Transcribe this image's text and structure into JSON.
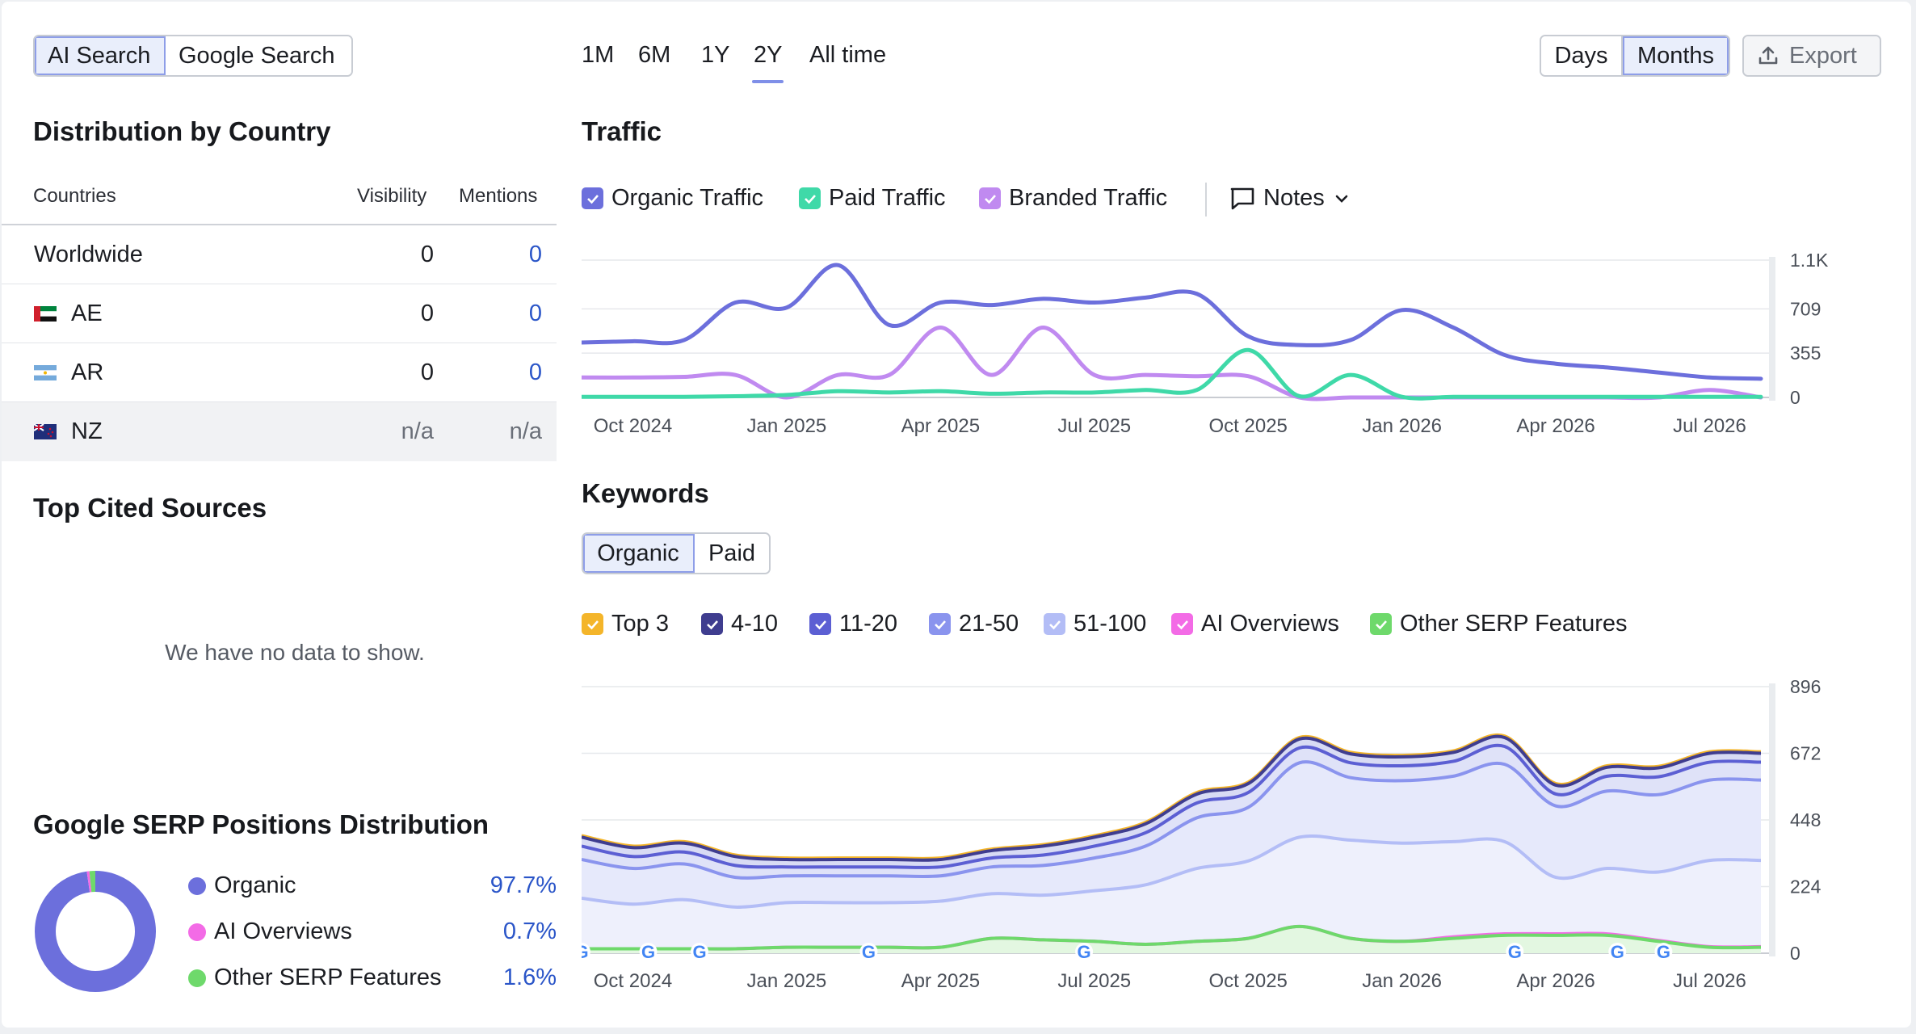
{
  "left": {
    "search_tabs": [
      {
        "label": "AI Search",
        "active": true
      },
      {
        "label": "Google Search",
        "active": false
      }
    ],
    "distribution": {
      "title": "Distribution by Country",
      "columns": {
        "countries": "Countries",
        "visibility": "Visibility",
        "mentions": "Mentions"
      },
      "rows": [
        {
          "country": "Worldwide",
          "flag": "",
          "visibility": "0",
          "mentions": "0"
        },
        {
          "country": "AE",
          "flag": "ae-flag",
          "visibility": "0",
          "mentions": "0"
        },
        {
          "country": "AR",
          "flag": "ar-flag",
          "visibility": "0",
          "mentions": "0"
        },
        {
          "country": "NZ",
          "flag": "nz-flag",
          "visibility": "n/a",
          "mentions": "n/a"
        }
      ]
    },
    "top_cited": {
      "title": "Top Cited Sources",
      "empty_text": "We have no data to show."
    },
    "serp": {
      "title": "Google SERP Positions Distribution",
      "items": [
        {
          "label": "Organic",
          "value": "97.7%",
          "color": "#6c6fdc",
          "share": 97.7
        },
        {
          "label": "AI Overviews",
          "value": "0.7%",
          "color": "#f36be6",
          "share": 0.7
        },
        {
          "label": "Other SERP Features",
          "value": "1.6%",
          "color": "#6ed96b",
          "share": 1.6
        }
      ]
    }
  },
  "header": {
    "ranges": [
      "1M",
      "6M",
      "1Y",
      "2Y",
      "All time"
    ],
    "selected_range": "2Y",
    "granularity": [
      {
        "label": "Days",
        "active": false
      },
      {
        "label": "Months",
        "active": true
      }
    ],
    "export_label": "Export"
  },
  "traffic": {
    "title": "Traffic",
    "legend": [
      {
        "label": "Organic Traffic",
        "color": "#6c6fdc"
      },
      {
        "label": "Paid Traffic",
        "color": "#3fd9a8"
      },
      {
        "label": "Branded Traffic",
        "color": "#c08af0"
      }
    ],
    "notes_label": "Notes",
    "yticks": [
      "1.1K",
      "709",
      "355",
      "0"
    ],
    "xticks": [
      "Oct 2024",
      "Jan 2025",
      "Apr 2025",
      "Jul 2025",
      "Oct 2025",
      "Jan 2026",
      "Apr 2026",
      "Jul 2026"
    ]
  },
  "keywords": {
    "title": "Keywords",
    "tabs": [
      {
        "label": "Organic",
        "active": true
      },
      {
        "label": "Paid",
        "active": false
      }
    ],
    "legend": [
      {
        "label": "Top 3",
        "color": "#f4b52a"
      },
      {
        "label": "4-10",
        "color": "#3f3d8f"
      },
      {
        "label": "11-20",
        "color": "#5c5fd3"
      },
      {
        "label": "21-50",
        "color": "#8a94ee"
      },
      {
        "label": "51-100",
        "color": "#b3bdf6"
      },
      {
        "label": "AI Overviews",
        "color": "#f36be6"
      },
      {
        "label": "Other SERP Features",
        "color": "#6ed96b"
      }
    ],
    "yticks": [
      "896",
      "672",
      "448",
      "224",
      "0"
    ],
    "xticks": [
      "Oct 2024",
      "Jan 2025",
      "Apr 2025",
      "Jul 2025",
      "Oct 2025",
      "Jan 2026",
      "Apr 2026",
      "Jul 2026"
    ]
  },
  "chart_data": [
    {
      "type": "line",
      "title": "Traffic",
      "x": [
        "2024-09",
        "2024-10",
        "2024-11",
        "2024-12",
        "2025-01",
        "2025-02",
        "2025-03",
        "2025-04",
        "2025-05",
        "2025-06",
        "2025-07",
        "2025-08",
        "2025-09",
        "2025-10",
        "2025-11",
        "2025-12",
        "2026-01",
        "2026-02",
        "2026-03",
        "2026-04",
        "2026-05",
        "2026-06",
        "2026-07",
        "2026-08"
      ],
      "ylim": [
        0,
        1100
      ],
      "yticks": [
        0,
        355,
        709,
        1100
      ],
      "grid": true,
      "series": [
        {
          "name": "Organic Traffic",
          "color": "#6c6fdc",
          "values": [
            440,
            450,
            460,
            760,
            720,
            1060,
            580,
            760,
            740,
            790,
            760,
            800,
            830,
            490,
            420,
            460,
            700,
            560,
            340,
            270,
            240,
            200,
            160,
            150
          ]
        },
        {
          "name": "Paid Traffic",
          "color": "#3fd9a8",
          "values": [
            5,
            5,
            5,
            10,
            20,
            50,
            40,
            50,
            30,
            40,
            40,
            60,
            60,
            380,
            10,
            180,
            5,
            5,
            5,
            5,
            5,
            5,
            5,
            5
          ]
        },
        {
          "name": "Branded Traffic",
          "color": "#c08af0",
          "values": [
            160,
            160,
            165,
            180,
            0,
            180,
            180,
            560,
            180,
            560,
            180,
            180,
            170,
            170,
            0,
            0,
            0,
            0,
            0,
            0,
            0,
            0,
            60,
            0
          ]
        }
      ]
    },
    {
      "type": "area",
      "title": "Keywords",
      "x": [
        "2024-09",
        "2024-10",
        "2024-11",
        "2024-12",
        "2025-01",
        "2025-02",
        "2025-03",
        "2025-04",
        "2025-05",
        "2025-06",
        "2025-07",
        "2025-08",
        "2025-09",
        "2025-10",
        "2025-11",
        "2025-12",
        "2026-01",
        "2026-02",
        "2026-03",
        "2026-04",
        "2026-05",
        "2026-06",
        "2026-07",
        "2026-08"
      ],
      "ylim": [
        0,
        896
      ],
      "yticks": [
        0,
        224,
        448,
        672,
        896
      ],
      "stacked": true,
      "series": [
        {
          "name": "Other SERP Features",
          "color": "#6ed96b",
          "values": [
            15,
            15,
            15,
            15,
            20,
            20,
            20,
            20,
            50,
            45,
            40,
            30,
            40,
            50,
            90,
            50,
            40,
            50,
            60,
            60,
            60,
            40,
            20,
            20
          ]
        },
        {
          "name": "AI Overviews",
          "color": "#f36be6",
          "values": [
            0,
            0,
            0,
            0,
            0,
            0,
            0,
            0,
            0,
            0,
            0,
            0,
            0,
            0,
            0,
            0,
            0,
            5,
            5,
            5,
            5,
            3,
            2,
            2
          ]
        },
        {
          "name": "51-100",
          "color": "#b3bdf6",
          "values": [
            170,
            150,
            165,
            140,
            150,
            150,
            150,
            155,
            150,
            150,
            170,
            200,
            245,
            260,
            300,
            330,
            330,
            320,
            310,
            190,
            220,
            230,
            290,
            290
          ]
        },
        {
          "name": "21-50",
          "color": "#8a94ee",
          "values": [
            130,
            120,
            120,
            100,
            90,
            90,
            90,
            85,
            90,
            100,
            110,
            130,
            170,
            180,
            250,
            210,
            210,
            220,
            260,
            240,
            260,
            260,
            270,
            270
          ]
        },
        {
          "name": "11-20",
          "color": "#5c5fd3",
          "values": [
            45,
            40,
            40,
            40,
            30,
            30,
            30,
            30,
            30,
            35,
            40,
            45,
            50,
            50,
            50,
            50,
            50,
            50,
            60,
            40,
            50,
            60,
            60,
            60
          ]
        },
        {
          "name": "4-10",
          "color": "#3f3d8f",
          "values": [
            30,
            30,
            30,
            30,
            25,
            25,
            25,
            25,
            25,
            30,
            30,
            30,
            30,
            30,
            30,
            30,
            30,
            30,
            30,
            30,
            30,
            30,
            30,
            30
          ]
        },
        {
          "name": "Top 3",
          "color": "#f4b52a",
          "values": [
            5,
            5,
            5,
            5,
            5,
            5,
            5,
            5,
            5,
            5,
            5,
            5,
            5,
            5,
            5,
            5,
            5,
            5,
            5,
            5,
            5,
            5,
            5,
            5
          ]
        }
      ]
    }
  ]
}
